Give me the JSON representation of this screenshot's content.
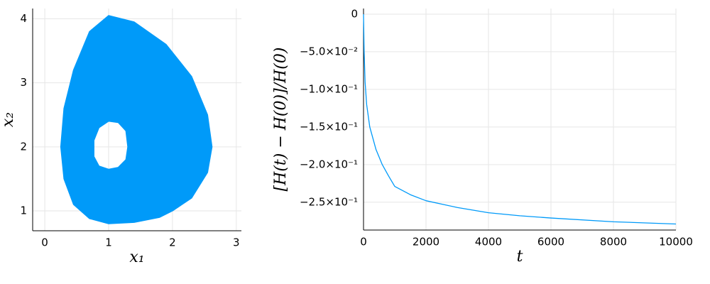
{
  "chart_data": [
    {
      "type": "line",
      "xlabel": "x₁",
      "ylabel": "x₂",
      "x": [
        2.0,
        2.3,
        2.55,
        2.62,
        2.55,
        2.3,
        1.9,
        1.4,
        1.0,
        0.7,
        0.45,
        0.3,
        0.25,
        0.3,
        0.45,
        0.7,
        1.0,
        1.4,
        1.8,
        2.0,
        null,
        1.3,
        1.27,
        1.15,
        1.0,
        0.85,
        0.77,
        0.77,
        0.85,
        1.0,
        1.15,
        1.27,
        1.3
      ],
      "series": [
        {
          "color": "#009af9",
          "fill": true,
          "values": [
            1.0,
            1.2,
            1.6,
            2.0,
            2.5,
            3.1,
            3.6,
            3.95,
            4.05,
            3.8,
            3.2,
            2.6,
            2.0,
            1.5,
            1.1,
            0.88,
            0.8,
            0.82,
            0.9,
            1.0,
            null,
            2.0,
            2.25,
            2.38,
            2.4,
            2.3,
            2.1,
            1.85,
            1.7,
            1.65,
            1.68,
            1.8,
            2.0
          ]
        }
      ],
      "xlim": [
        -0.19,
        3.08
      ],
      "xticks": [
        0,
        1,
        2,
        3
      ],
      "ylim": [
        0.69,
        4.16
      ],
      "yticks": [
        1,
        2,
        3,
        4
      ],
      "grid": true
    },
    {
      "type": "line",
      "xlabel": "t",
      "ylabel": "[H(t) − H(0)]/H(0)",
      "x": [
        0,
        20,
        50,
        100,
        200,
        400,
        600,
        800,
        1000,
        1500,
        2000,
        3000,
        4000,
        5000,
        6000,
        8000,
        10000
      ],
      "series": [
        {
          "color": "#009af9",
          "fill": false,
          "values": [
            0,
            -0.05,
            -0.09,
            -0.12,
            -0.15,
            -0.18,
            -0.2,
            -0.215,
            -0.229,
            -0.24,
            -0.248,
            -0.257,
            -0.264,
            -0.268,
            -0.271,
            -0.276,
            -0.279
          ]
        }
      ],
      "xlim": [
        0,
        10000
      ],
      "xticks": [
        0,
        2000,
        4000,
        6000,
        8000,
        10000
      ],
      "ylim": [
        -0.287,
        0.0075
      ],
      "yticks": [
        0,
        {
          "value": -0.05,
          "label": "−5.0×10⁻²"
        },
        {
          "value": -0.1,
          "label": "−1.0×10⁻¹"
        },
        {
          "value": -0.15,
          "label": "−1.5×10⁻¹"
        },
        {
          "value": -0.2,
          "label": "−2.0×10⁻¹"
        },
        {
          "value": -0.25,
          "label": "−2.5×10⁻¹"
        }
      ],
      "grid": true
    }
  ]
}
